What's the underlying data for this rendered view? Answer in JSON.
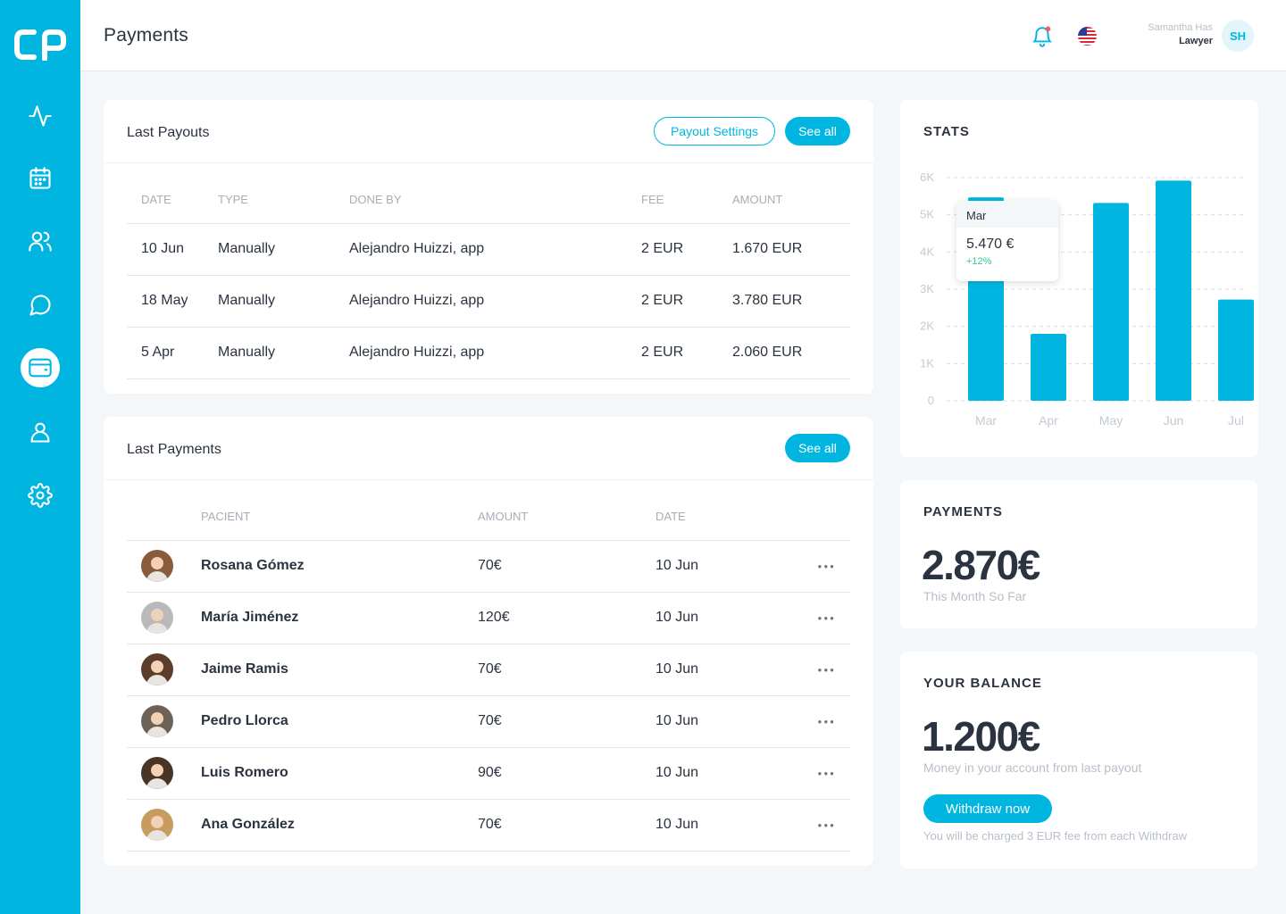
{
  "header": {
    "title": "Payments",
    "user_name": "Samantha Has",
    "user_role": "Lawyer",
    "user_initials": "SH"
  },
  "sidebar": {
    "items": [
      {
        "name": "activity-icon"
      },
      {
        "name": "calendar-icon"
      },
      {
        "name": "users-icon"
      },
      {
        "name": "chat-icon"
      },
      {
        "name": "wallet-icon",
        "active": true
      },
      {
        "name": "user-icon"
      },
      {
        "name": "settings-icon"
      }
    ]
  },
  "payouts": {
    "title": "Last Payouts",
    "settings_label": "Payout Settings",
    "see_all_label": "See all",
    "columns": [
      "DATE",
      "TYPE",
      "DONE BY",
      "FEE",
      "AMOUNT"
    ],
    "rows": [
      {
        "date": "10 Jun",
        "type": "Manually",
        "done_by": "Alejandro Huizzi, app",
        "fee": "2 EUR",
        "amount": "1.670 EUR"
      },
      {
        "date": "18 May",
        "type": "Manually",
        "done_by": "Alejandro Huizzi, app",
        "fee": "2 EUR",
        "amount": "3.780 EUR"
      },
      {
        "date": "5 Apr",
        "type": "Manually",
        "done_by": "Alejandro Huizzi, app",
        "fee": "2 EUR",
        "amount": "2.060 EUR"
      }
    ]
  },
  "payments": {
    "title": "Last Payments",
    "see_all_label": "See all",
    "columns": [
      "PACIENT",
      "AMOUNT",
      "DATE"
    ],
    "rows": [
      {
        "name": "Rosana Gómez",
        "amount": "70€",
        "date": "10 Jun",
        "avatar_color": "#8a5a3c"
      },
      {
        "name": "María Jiménez",
        "amount": "120€",
        "date": "10 Jun",
        "avatar_color": "#b9b9b9"
      },
      {
        "name": "Jaime Ramis",
        "amount": "70€",
        "date": "10 Jun",
        "avatar_color": "#5b3d2a"
      },
      {
        "name": "Pedro Llorca",
        "amount": "70€",
        "date": "10 Jun",
        "avatar_color": "#6e6257"
      },
      {
        "name": "Luis Romero",
        "amount": "90€",
        "date": "10 Jun",
        "avatar_color": "#4a3426"
      },
      {
        "name": "Ana González",
        "amount": "70€",
        "date": "10 Jun",
        "avatar_color": "#c89b5e"
      }
    ]
  },
  "stats": {
    "title": "STATS",
    "tooltip": {
      "month": "Mar",
      "value": "5.470 €",
      "change": "+12%"
    }
  },
  "chart_data": {
    "type": "bar",
    "categories": [
      "Mar",
      "Apr",
      "May",
      "Jun",
      "Jul"
    ],
    "values": [
      5470,
      1800,
      5320,
      5920,
      2720
    ],
    "yticks": [
      "0",
      "1K",
      "2K",
      "3K",
      "4K",
      "5K",
      "6K"
    ],
    "ylim": [
      0,
      6000
    ],
    "grid": true,
    "bar_color": "#00b6e1"
  },
  "payments_summary": {
    "title": "PAYMENTS",
    "value": "2.870€",
    "subtitle": "This Month So Far"
  },
  "balance": {
    "title": "YOUR BALANCE",
    "value": "1.200€",
    "subtitle": "Money in your account from last payout",
    "withdraw_label": "Withdraw now",
    "fee_note": "You will be charged 3 EUR fee from each Withdraw"
  },
  "colors": {
    "accent": "#00b6e1",
    "positive": "#2ecc8f",
    "notification": "#ff5a5a"
  }
}
